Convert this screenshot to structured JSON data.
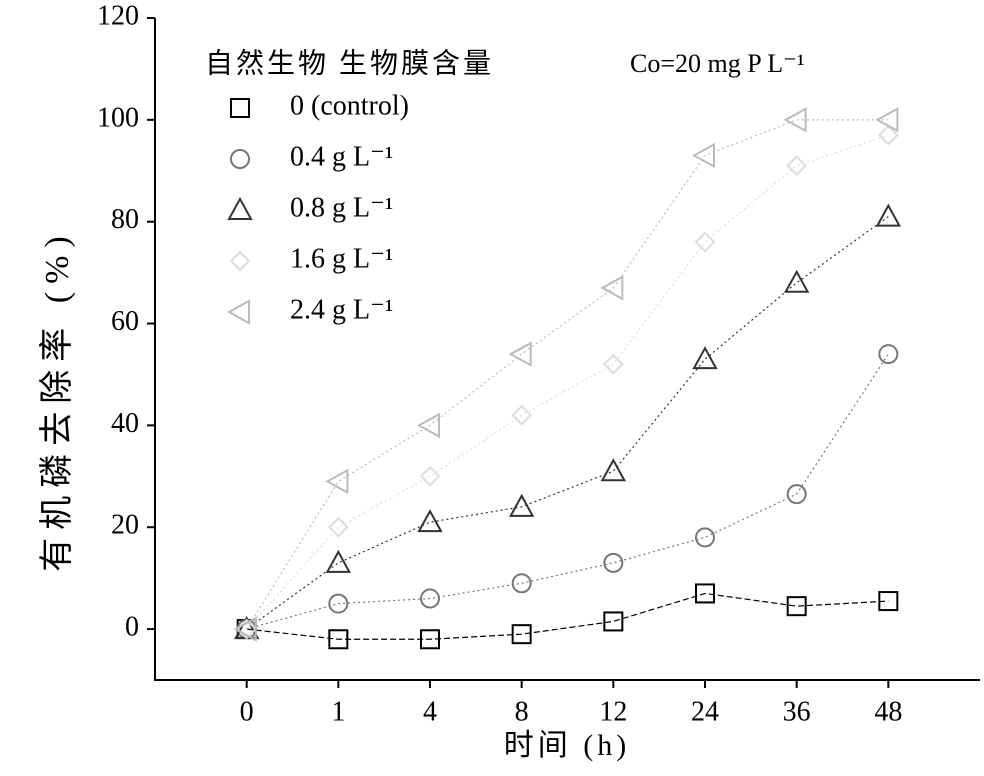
{
  "chart_data": {
    "type": "line",
    "legend_title": "自然生物 生物膜含量",
    "annotation": "Co=20 mg P L⁻¹",
    "x_label": "时间 (h)",
    "y_label": "有机磷去除率 (%)",
    "categories": [
      "0",
      "1",
      "4",
      "8",
      "12",
      "24",
      "36",
      "48"
    ],
    "series": [
      {
        "name": "0 (control)",
        "color": "#000000",
        "marker": "square",
        "values": [
          0,
          -2,
          -2,
          -1,
          1.5,
          7,
          4.5,
          5.5
        ]
      },
      {
        "name": "0.4 g L⁻¹",
        "color": "#777777",
        "marker": "circle",
        "values": [
          0,
          5,
          6,
          9,
          13,
          18,
          26.5,
          54
        ]
      },
      {
        "name": "0.8 g L⁻¹",
        "color": "#333333",
        "marker": "triangle",
        "values": [
          0,
          13,
          21,
          24,
          31,
          53,
          68,
          81
        ]
      },
      {
        "name": "1.6 g L⁻¹",
        "color": "#dddddd",
        "marker": "diamond",
        "values": [
          0,
          20,
          30,
          42,
          52,
          76,
          91,
          97
        ]
      },
      {
        "name": "2.4 g L⁻¹",
        "color": "#bbbbbb",
        "marker": "left-triangle",
        "values": [
          0,
          29,
          40,
          54,
          67,
          93,
          100,
          100
        ]
      }
    ],
    "ylim": [
      -10,
      120
    ],
    "yticks": [
      0,
      20,
      40,
      60,
      80,
      100,
      120
    ]
  }
}
